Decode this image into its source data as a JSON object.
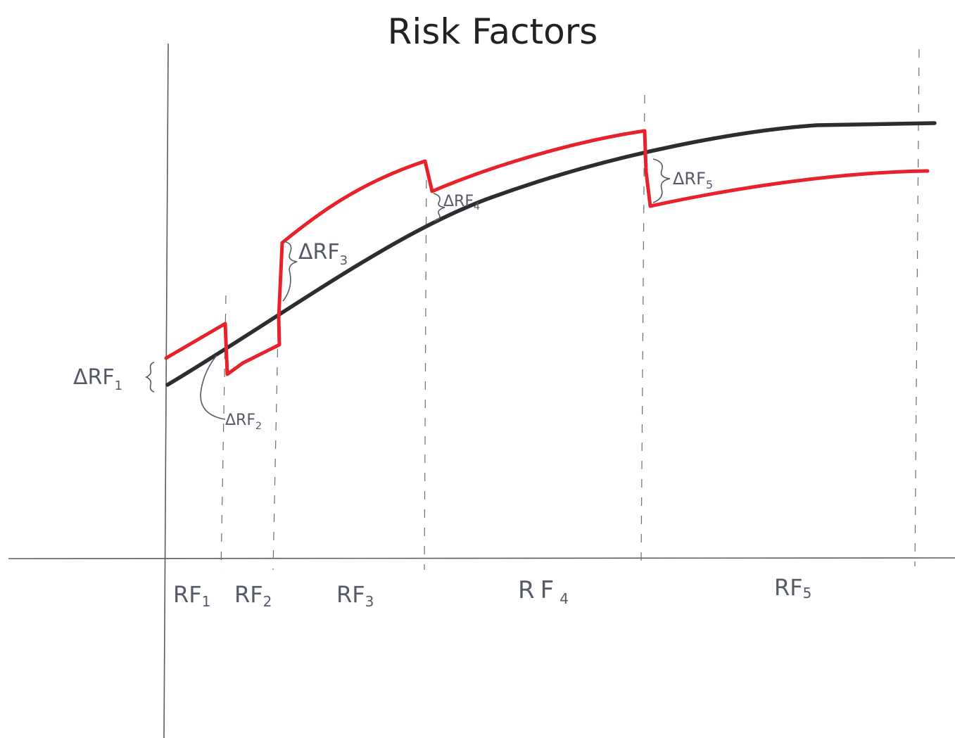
{
  "title": "Risk Factors",
  "colors": {
    "base_curve": "#2b2d30",
    "shocked_curve": "#e8222a",
    "axis": "#5a5d66",
    "guide": "#6a6d75",
    "annotation": "#555a66"
  },
  "buckets": [
    {
      "label": "RF",
      "sub": "1"
    },
    {
      "label": "RF",
      "sub": "2"
    },
    {
      "label": "RF",
      "sub": "3"
    },
    {
      "label": "RF",
      "sub": "4"
    },
    {
      "label": "RF",
      "sub": "5"
    }
  ],
  "shifts": [
    {
      "label": "ΔRF",
      "sub": "1"
    },
    {
      "label": "ΔRF",
      "sub": "2"
    },
    {
      "label": "ΔRF",
      "sub": "3"
    },
    {
      "label": "ΔRF",
      "sub": "4"
    },
    {
      "label": "ΔRF",
      "sub": "5"
    }
  ]
}
